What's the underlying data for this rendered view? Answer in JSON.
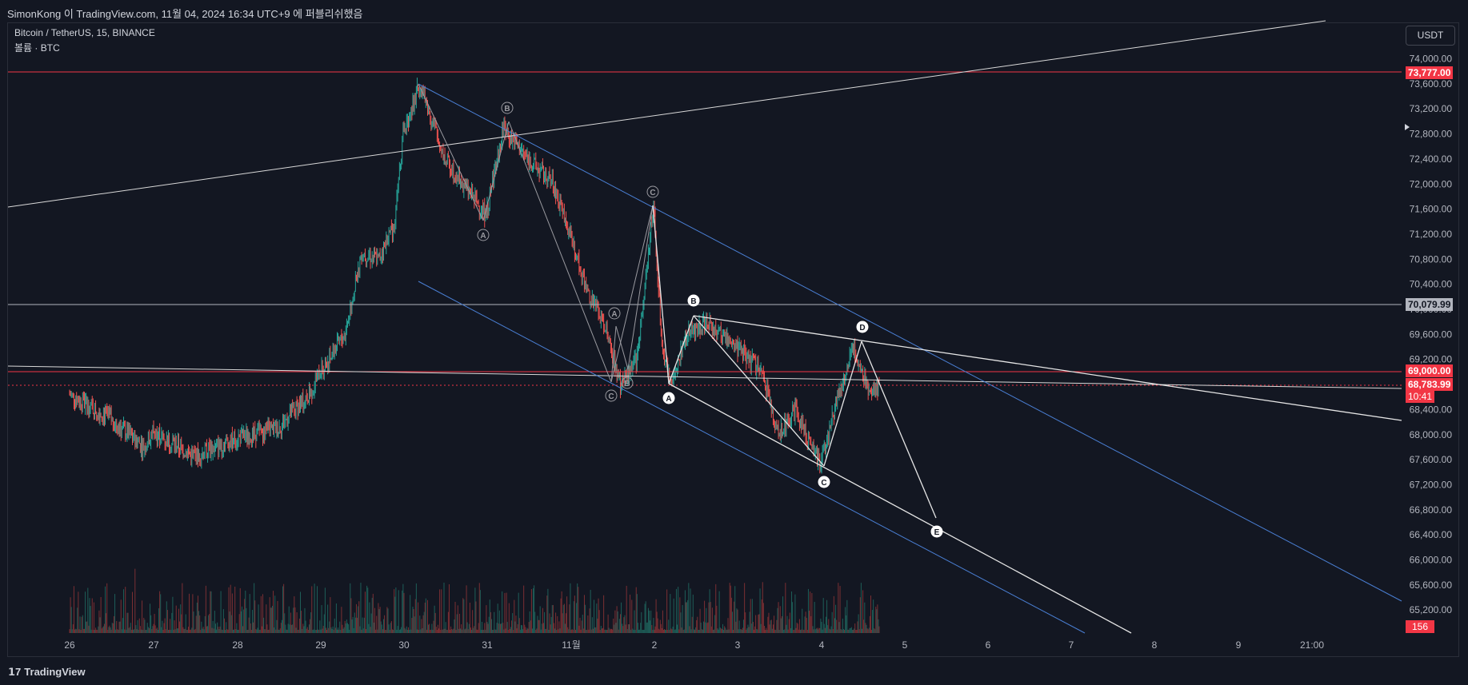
{
  "header": {
    "title": "SimonKong 이 TradingView.com, 11월 04, 2024 16:34 UTC+9 에 퍼블리쉬했음"
  },
  "legend": {
    "symbol": "Bitcoin / TetherUS, 15, BINANCE",
    "volume": "볼륨 · BTC"
  },
  "currency_button": "USDT",
  "price_tags": {
    "top_red": "73,777.00",
    "gray_level": "70,079.99",
    "red_level": "69,000.00",
    "last_price": "68,783.99",
    "countdown": "10:41",
    "volume": "156"
  },
  "footer": {
    "logo": "TradingView"
  },
  "colors": {
    "background": "#131722",
    "grid_text": "#b2b5be",
    "up": "#26a69a",
    "down": "#ef5350",
    "trend_blue": "#4a7fd4",
    "line_white": "#e6e6e6",
    "red_level": "#f23645"
  },
  "chart_data": {
    "type": "candlestick",
    "symbol": "Bitcoin / TetherUS",
    "interval": "15",
    "exchange": "BINANCE",
    "ylim": [
      64800,
      74400
    ],
    "y_ticks": [
      "74,000.00",
      "73,600.00",
      "73,200.00",
      "72,800.00",
      "72,400.00",
      "72,000.00",
      "71,600.00",
      "71,200.00",
      "70,800.00",
      "70,400.00",
      "70,000.00",
      "69,600.00",
      "69,200.00",
      "68,800.00",
      "68,400.00",
      "68,000.00",
      "67,600.00",
      "67,200.00",
      "66,800.00",
      "66,400.00",
      "66,000.00",
      "65,600.00",
      "65,200.00"
    ],
    "x_ticks": [
      "26",
      "27",
      "28",
      "29",
      "30",
      "31",
      "11월",
      "2",
      "3",
      "4",
      "5",
      "6",
      "7",
      "8",
      "9",
      "21:00"
    ],
    "price_path": [
      [
        "26",
        68650
      ],
      [
        "26.5",
        68250
      ],
      [
        "26.9",
        67800
      ],
      [
        "27",
        68050
      ],
      [
        "27.5",
        67650
      ],
      [
        "28",
        67950
      ],
      [
        "28.5",
        68100
      ],
      [
        "28.9",
        68700
      ],
      [
        "29",
        69000
      ],
      [
        "29.3",
        69600
      ],
      [
        "29.5",
        70900
      ],
      [
        "29.7",
        70800
      ],
      [
        "29.9",
        71400
      ],
      [
        "30",
        72800
      ],
      [
        "30.2",
        73600
      ],
      [
        "30.5",
        72400
      ],
      [
        "31",
        71500
      ],
      [
        "31.2",
        72900
      ],
      [
        "31.5",
        72400
      ],
      [
        "31.8",
        72000
      ],
      [
        "11월",
        71200
      ],
      [
        "1.2",
        70300
      ],
      [
        "1.4",
        69800
      ],
      [
        "1.6",
        68800
      ],
      [
        "1.8",
        69200
      ],
      [
        "2",
        71700
      ],
      [
        "2.1",
        69400
      ],
      [
        "2.2",
        68800
      ],
      [
        "2.4",
        69600
      ],
      [
        "2.6",
        69800
      ],
      [
        "3",
        69400
      ],
      [
        "3.3",
        69000
      ],
      [
        "3.5",
        68000
      ],
      [
        "3.7",
        68400
      ],
      [
        "4",
        67500
      ],
      [
        "4.2",
        68600
      ],
      [
        "4.4",
        69400
      ],
      [
        "4.6",
        68600
      ],
      [
        "4.7",
        68784
      ]
    ],
    "horizontal_levels": [
      73777,
      70079.99,
      69000
    ],
    "wave_labels": {
      "first": [
        "A",
        "B",
        "C"
      ],
      "second": [
        "A",
        "B",
        "C"
      ],
      "triangle": [
        "A",
        "B",
        "C",
        "D",
        "E"
      ]
    }
  }
}
